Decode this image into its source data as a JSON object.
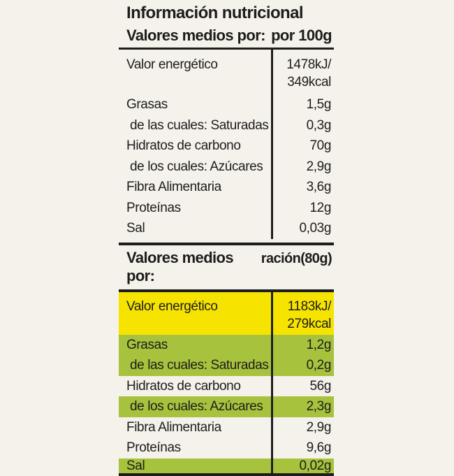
{
  "title": "Información nutricional",
  "colors": {
    "background": "#f5f2ec",
    "text": "#1d1d1b",
    "rule": "#1d1d1b",
    "yellow": "#f6e400",
    "green": "#a7c23d"
  },
  "table_per_100g": {
    "header_label": "Valores medios por:",
    "header_value": "por 100g",
    "rows": [
      {
        "label": "Valor energético",
        "value": "1478kJ/",
        "value2": "349kcal"
      },
      {
        "label": "Grasas",
        "value": "1,5g"
      },
      {
        "label": "de las cuales: Saturadas",
        "value": "0,3g"
      },
      {
        "label": "Hidratos de carbono",
        "value": "70g"
      },
      {
        "label": "de los cuales: Azúcares",
        "value": "2,9g"
      },
      {
        "label": "Fibra Alimentaria",
        "value": "3,6g"
      },
      {
        "label": "Proteínas",
        "value": "12g"
      },
      {
        "label": "Sal",
        "value": "0,03g"
      }
    ]
  },
  "table_per_portion": {
    "header_label": "Valores medios por:",
    "header_value": "ración(80g)",
    "rows": [
      {
        "label": "Valor energético",
        "value": "1183kJ/",
        "value2": "279kcal",
        "bg": "yellow"
      },
      {
        "label": "Grasas",
        "value": "1,2g",
        "bg": "green"
      },
      {
        "label": "de las cuales: Saturadas",
        "value": "0,2g",
        "bg": "green"
      },
      {
        "label": "Hidratos de carbono",
        "value": "56g",
        "bg": "none"
      },
      {
        "label": "de los cuales: Azúcares",
        "value": "2,3g",
        "bg": "green"
      },
      {
        "label": "Fibra Alimentaria",
        "value": "2,9g",
        "bg": "none"
      },
      {
        "label": "Proteínas",
        "value": "9,6g",
        "bg": "none"
      },
      {
        "label": "Sal",
        "value": "0,02g",
        "bg": "green"
      }
    ]
  }
}
